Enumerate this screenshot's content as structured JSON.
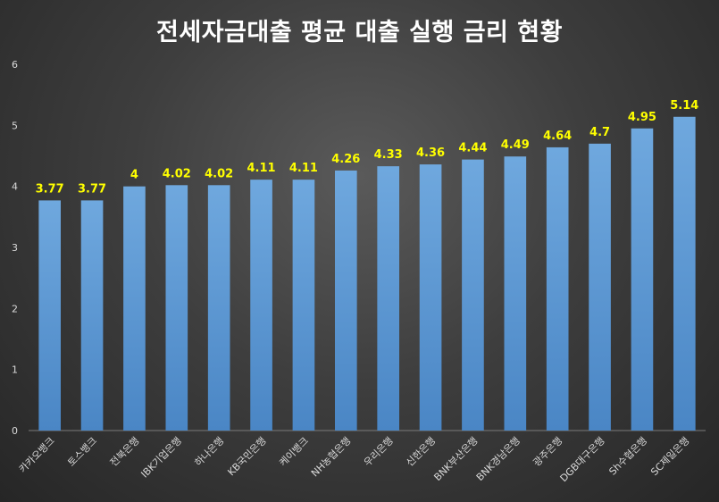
{
  "chart_data": {
    "type": "bar",
    "title": "전세자금대출 평균 대출 실행 금리 현황",
    "categories": [
      "카카오뱅크",
      "토스뱅크",
      "전북은행",
      "IBK기업은행",
      "하나은행",
      "KB국민은행",
      "케이뱅크",
      "NH농협은행",
      "우리은행",
      "신한은행",
      "BNK부산은행",
      "BNK경남은행",
      "광주은행",
      "DGB대구은행",
      "Sh수협은행",
      "SC제일은행"
    ],
    "values": [
      3.77,
      3.77,
      4,
      4.02,
      4.02,
      4.11,
      4.11,
      4.26,
      4.33,
      4.36,
      4.44,
      4.49,
      4.64,
      4.7,
      4.95,
      5.14
    ],
    "data_labels": [
      "3.77",
      "3.77",
      "4",
      "4.02",
      "4.02",
      "4.11",
      "4.11",
      "4.26",
      "4.33",
      "4.36",
      "4.44",
      "4.49",
      "4.64",
      "4.7",
      "4.95",
      "5.14"
    ],
    "y_ticks": [
      "0",
      "1",
      "2",
      "3",
      "4",
      "5",
      "6"
    ],
    "ylim": [
      0,
      6
    ],
    "xlabel": "",
    "ylabel": "",
    "grid": false,
    "legend": "none",
    "colors": {
      "bar": "#5b9bd5",
      "data_label": "#ffff00",
      "title": "#ffffff",
      "tick": "#d9d9d9"
    }
  }
}
